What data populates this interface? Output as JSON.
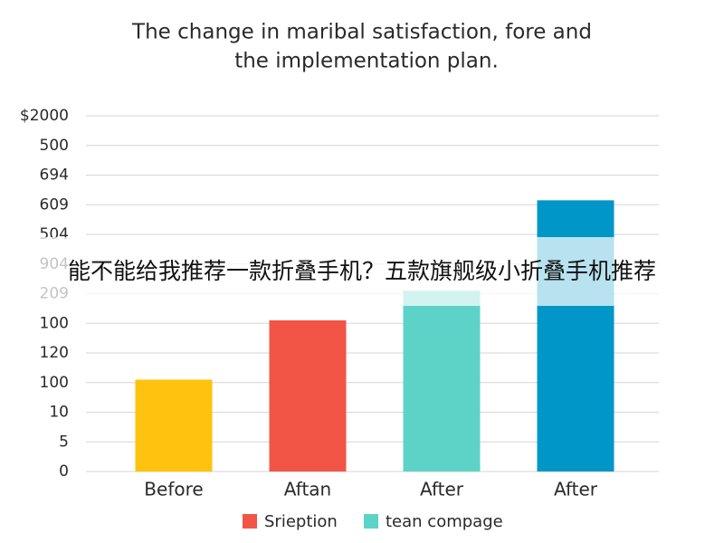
{
  "chart_data": {
    "type": "bar",
    "title": [
      "The change in maribal satisfaction, fore and",
      "the implementation plan."
    ],
    "categories": [
      "Before",
      "Aftan",
      "After",
      "After"
    ],
    "values": [
      3.1,
      5.1,
      6.1,
      9.15
    ],
    "colors": [
      "#FFC20E",
      "#F25546",
      "#5DD3C8",
      "#0096C8"
    ],
    "ylim": [
      0,
      12
    ],
    "yticks": [
      {
        "value": 0,
        "label": "0"
      },
      {
        "value": 1,
        "label": "5"
      },
      {
        "value": 2,
        "label": "10"
      },
      {
        "value": 3,
        "label": "100"
      },
      {
        "value": 4,
        "label": "120"
      },
      {
        "value": 5,
        "label": "100"
      },
      {
        "value": 6,
        "label": "209"
      },
      {
        "value": 7,
        "label": "904"
      },
      {
        "value": 8,
        "label": "504"
      },
      {
        "value": 9,
        "label": "609"
      },
      {
        "value": 10,
        "label": "694"
      },
      {
        "value": 11,
        "label": "500"
      },
      {
        "value": 12,
        "label": "$2000"
      }
    ],
    "grid": true,
    "legend": [
      {
        "name": "Srieption",
        "color": "#F25546"
      },
      {
        "name": "tean compage",
        "color": "#5DD3C8"
      }
    ],
    "overlay_text": "能不能给我推荐一款折叠手机？五款旗舰级小折叠手机推荐"
  }
}
